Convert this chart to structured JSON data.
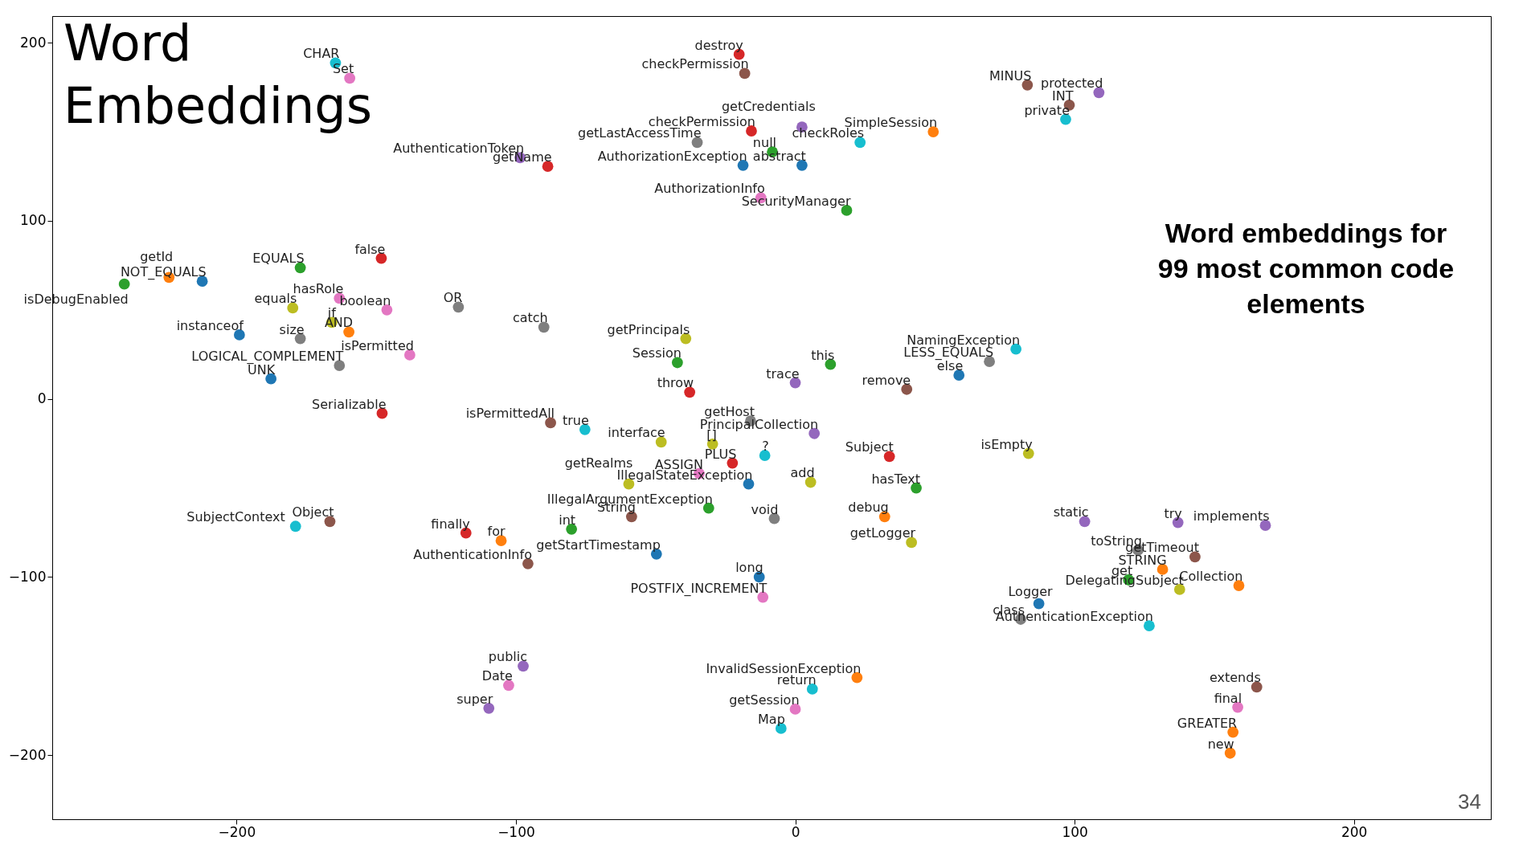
{
  "chart_data": {
    "type": "scatter",
    "title": "Word Embeddings",
    "marker": "circle",
    "annotations": [
      "Word embeddings for 99 most common code elements",
      "34"
    ],
    "xlim": [
      -266,
      249
    ],
    "ylim": [
      -236,
      215
    ],
    "xticks": [
      -200,
      -100,
      0,
      100,
      200
    ],
    "yticks": [
      -200,
      -100,
      0,
      100,
      200
    ],
    "x": [
      -20.1,
      -18.1,
      -164.6,
      -159.5,
      83.1,
      108.7,
      98.1,
      96.8,
      2.4,
      -15.7,
      49.4,
      23.2,
      -35.1,
      -8.2,
      -98.5,
      -88.6,
      -18.7,
      2.4,
      -12.3,
      18.4,
      -148.2,
      -177.2,
      -240.2,
      -224.2,
      -212.3,
      -163.2,
      -179.9,
      -146.2,
      -120.6,
      -165.9,
      -159.8,
      -199,
      -177.2,
      -90,
      -138,
      -163.2,
      -187.7,
      -147.9,
      -39.2,
      -42.2,
      -37.8,
      12.6,
      0,
      39.9,
      79,
      69.5,
      58.6,
      -87.6,
      -75.3,
      -48,
      -16,
      6.8,
      -29.6,
      -10.9,
      -22.5,
      -34.4,
      -59.6,
      -16.7,
      5.5,
      33.7,
      43.3,
      83.5,
      -31,
      -58.6,
      -7.5,
      32,
      -80.1,
      -117.9,
      -105.3,
      41.6,
      -49.7,
      -95.7,
      -178.9,
      -166.6,
      -12.9,
      -11.6,
      103.6,
      137,
      168.3,
      122.7,
      143.1,
      131.5,
      119.3,
      137.6,
      158.8,
      87.2,
      80.7,
      126.7,
      -97.4,
      -102.6,
      -109.7,
      22.1,
      6.1,
      0,
      -5.1,
      165.2,
      158.4,
      156.7,
      155.7
    ],
    "values": [
      193.5,
      182.8,
      188.7,
      180.1,
      176.3,
      172,
      165,
      157,
      152.7,
      150.5,
      150,
      144,
      144,
      138.7,
      135.5,
      130.6,
      131.2,
      131.2,
      112.9,
      105.9,
      79,
      73.7,
      64.5,
      68.3,
      66.1,
      56.5,
      51.1,
      50,
      51.6,
      43,
      37.6,
      36,
      33.9,
      40.3,
      24.7,
      18.8,
      11.3,
      -8.1,
      33.9,
      20.4,
      3.8,
      19.4,
      9.1,
      5.4,
      28,
      21,
      13.4,
      -13.4,
      -17.2,
      -24.2,
      -12.4,
      -19.4,
      -25.3,
      -31.7,
      -36,
      -41.9,
      -47.8,
      -47.8,
      -46.8,
      -32.3,
      -50,
      -30.6,
      -61.3,
      -66.1,
      -67.2,
      -66.1,
      -73.1,
      -75.3,
      -79.6,
      -80.6,
      -87.1,
      -92.5,
      -71.5,
      -68.8,
      -100,
      -111.3,
      -68.8,
      -69.4,
      -71,
      -84.9,
      -88.7,
      -95.7,
      -101.6,
      -107,
      -104.8,
      -115,
      -123.7,
      -127.4,
      -150,
      -160.8,
      -173.7,
      -156.5,
      -162.9,
      -174.2,
      -185,
      -161.8,
      -173.1,
      -187.1,
      -198.9
    ],
    "value_labels": [
      "destroy",
      "checkPermission",
      "CHAR",
      "Set",
      "MINUS",
      "protected",
      "INT",
      "private",
      "getCredentials",
      "checkPermission",
      "SimpleSession",
      "checkRoles",
      "getLastAccessTime",
      "null",
      "AuthenticationToken",
      "getName",
      "AuthorizationException",
      "abstract",
      "AuthorizationInfo",
      "SecurityManager",
      "false",
      "EQUALS",
      "isDebugEnabled",
      "getId",
      "NOT_EQUALS",
      "hasRole",
      "equals",
      "boolean",
      "OR",
      "if",
      "AND",
      "instanceof",
      "size",
      "catch",
      "isPermitted",
      "LOGICAL_COMPLEMENT",
      "UNK",
      "Serializable",
      "getPrincipals",
      "Session",
      "throw",
      "this",
      "trace",
      "remove",
      "NamingException",
      "LESS_EQUALS",
      "else",
      "isPermittedAll",
      "true",
      "interface",
      "getHost",
      "PrincipalCollection",
      "[]",
      "?",
      "PLUS",
      "ASSIGN",
      "getRealms",
      "IllegalStateException",
      "add",
      "Subject",
      "hasText",
      "isEmpty",
      "IllegalArgumentException",
      "String",
      "void",
      "debug",
      "int",
      "finally",
      "for",
      "getLogger",
      "getStartTimestamp",
      "AuthenticationInfo",
      "SubjectContext",
      "Object",
      "long",
      "POSTFIX_INCREMENT",
      "static",
      "try",
      "implements",
      "toString",
      "getTimeout",
      "STRING",
      "get",
      "DelegatingSubject",
      "Collection",
      "Logger",
      "class",
      "AuthenticationException",
      "public",
      "Date",
      "super",
      "InvalidSessionException",
      "return",
      "getSession",
      "Map",
      "extends",
      "final",
      "GREATER",
      "new"
    ],
    "colors": [
      "#d62728",
      "#8c564b",
      "#17becf",
      "#e377c2",
      "#8c564b",
      "#9467bd",
      "#8c564b",
      "#17becf",
      "#9467bd",
      "#d62728",
      "#ff7f0e",
      "#17becf",
      "#7f7f7f",
      "#2ca02c",
      "#9467bd",
      "#d62728",
      "#1f77b4",
      "#1f77b4",
      "#e377c2",
      "#2ca02c",
      "#d62728",
      "#2ca02c",
      "#2ca02c",
      "#ff7f0e",
      "#1f77b4",
      "#e377c2",
      "#bcbd22",
      "#e377c2",
      "#7f7f7f",
      "#bcbd22",
      "#ff7f0e",
      "#1f77b4",
      "#7f7f7f",
      "#7f7f7f",
      "#e377c2",
      "#7f7f7f",
      "#1f77b4",
      "#d62728",
      "#bcbd22",
      "#2ca02c",
      "#d62728",
      "#2ca02c",
      "#9467bd",
      "#8c564b",
      "#17becf",
      "#7f7f7f",
      "#1f77b4",
      "#8c564b",
      "#17becf",
      "#bcbd22",
      "#7f7f7f",
      "#9467bd",
      "#bcbd22",
      "#17becf",
      "#d62728",
      "#e377c2",
      "#bcbd22",
      "#1f77b4",
      "#bcbd22",
      "#d62728",
      "#2ca02c",
      "#bcbd22",
      "#2ca02c",
      "#8c564b",
      "#7f7f7f",
      "#ff7f0e",
      "#2ca02c",
      "#d62728",
      "#ff7f0e",
      "#bcbd22",
      "#1f77b4",
      "#8c564b",
      "#17becf",
      "#8c564b",
      "#1f77b4",
      "#e377c2",
      "#9467bd",
      "#9467bd",
      "#9467bd",
      "#7f7f7f",
      "#8c564b",
      "#ff7f0e",
      "#2ca02c",
      "#bcbd22",
      "#ff7f0e",
      "#1f77b4",
      "#7f7f7f",
      "#17becf",
      "#9467bd",
      "#e377c2",
      "#9467bd",
      "#ff7f0e",
      "#17becf",
      "#e377c2",
      "#17becf",
      "#8c564b",
      "#e377c2",
      "#ff7f0e",
      "#ff7f0e"
    ]
  }
}
